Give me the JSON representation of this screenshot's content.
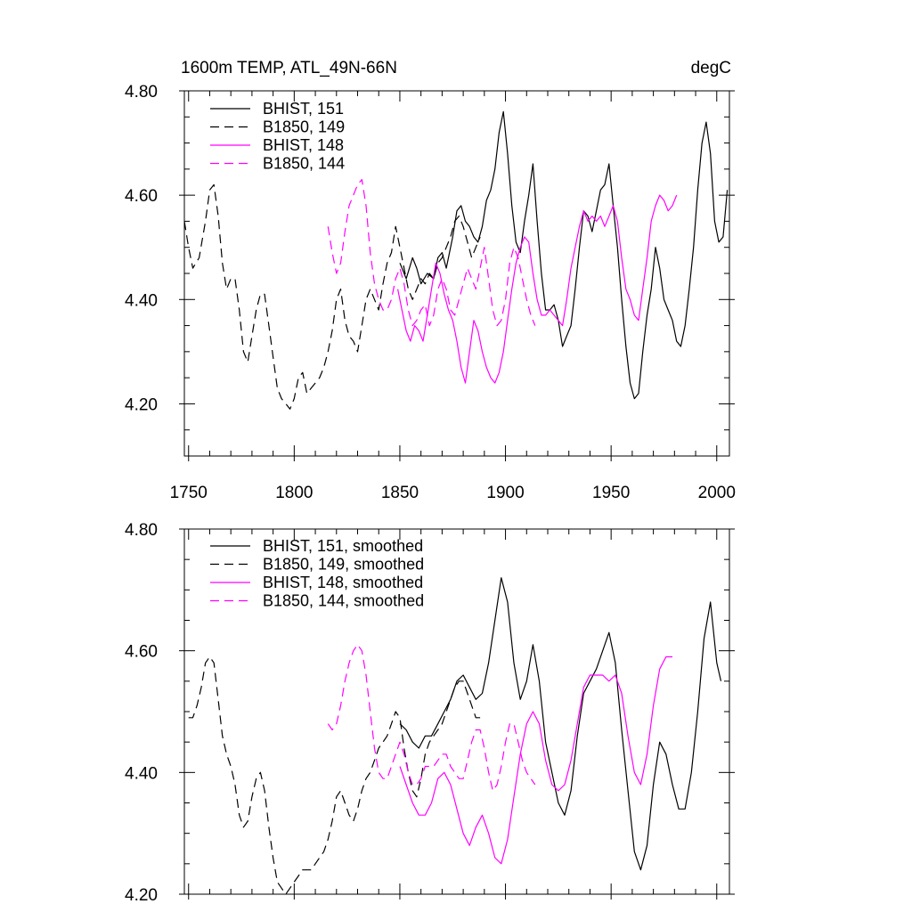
{
  "header": {
    "title": "1600m TEMP, ATL_49N-66N",
    "units": "degC"
  },
  "colors": {
    "black": "#000000",
    "magenta": "#ff00ff"
  },
  "chart_data": [
    {
      "type": "line",
      "panel": "top",
      "xlim": [
        1748,
        2006
      ],
      "ylim": [
        4.1,
        4.8
      ],
      "xticks": [
        1750,
        1800,
        1850,
        1900,
        1950,
        2000
      ],
      "yticks": [
        4.2,
        4.4,
        4.6,
        4.8
      ],
      "xtick_labels": [
        "1750",
        "1800",
        "1850",
        "1900",
        "1950",
        "2000"
      ],
      "ytick_labels": [
        "4.20",
        "4.40",
        "4.60",
        "4.80"
      ],
      "legend": "top-left",
      "series": [
        {
          "name": "BHIST, 151",
          "color": "#000000",
          "dash": "solid",
          "x": [
            1850,
            1853,
            1856,
            1858,
            1860,
            1863,
            1866,
            1868,
            1870,
            1872,
            1875,
            1877,
            1879,
            1881,
            1883,
            1885,
            1887,
            1889,
            1891,
            1893,
            1895,
            1897,
            1899,
            1901,
            1903,
            1905,
            1907,
            1909,
            1911,
            1913,
            1915,
            1917,
            1919,
            1921,
            1923,
            1925,
            1927,
            1929,
            1931,
            1933,
            1935,
            1937,
            1939,
            1941,
            1943,
            1945,
            1947,
            1949,
            1951,
            1953,
            1955,
            1957,
            1959,
            1961,
            1963,
            1965,
            1967,
            1969,
            1971,
            1973,
            1975,
            1977,
            1979,
            1981,
            1983,
            1985,
            1987,
            1989,
            1991,
            1993,
            1995,
            1997,
            1999,
            2001,
            2003,
            2005
          ],
          "y": [
            4.47,
            4.44,
            4.48,
            4.46,
            4.43,
            4.45,
            4.44,
            4.48,
            4.49,
            4.46,
            4.52,
            4.57,
            4.58,
            4.55,
            4.54,
            4.52,
            4.51,
            4.54,
            4.59,
            4.61,
            4.65,
            4.72,
            4.76,
            4.68,
            4.58,
            4.51,
            4.49,
            4.55,
            4.6,
            4.66,
            4.55,
            4.45,
            4.38,
            4.38,
            4.39,
            4.36,
            4.31,
            4.33,
            4.35,
            4.42,
            4.5,
            4.57,
            4.56,
            4.53,
            4.57,
            4.61,
            4.62,
            4.66,
            4.58,
            4.5,
            4.4,
            4.31,
            4.24,
            4.21,
            4.22,
            4.3,
            4.37,
            4.42,
            4.5,
            4.46,
            4.4,
            4.38,
            4.36,
            4.32,
            4.31,
            4.35,
            4.42,
            4.5,
            4.61,
            4.7,
            4.74,
            4.68,
            4.55,
            4.51,
            4.52,
            4.61
          ]
        },
        {
          "name": "B1850, 149",
          "color": "#000000",
          "dash": "long",
          "x": [
            1748,
            1750,
            1752,
            1755,
            1758,
            1760,
            1762,
            1764,
            1766,
            1768,
            1770,
            1772,
            1774,
            1776,
            1778,
            1780,
            1782,
            1784,
            1786,
            1788,
            1790,
            1792,
            1794,
            1796,
            1798,
            1800,
            1802,
            1804,
            1806,
            1808,
            1810,
            1812,
            1814,
            1816,
            1818,
            1820,
            1822,
            1824,
            1826,
            1828,
            1830,
            1832,
            1834,
            1836,
            1838,
            1840,
            1842,
            1844,
            1846,
            1848,
            1850,
            1852,
            1854,
            1856,
            1858,
            1860,
            1862,
            1864,
            1866,
            1868,
            1870,
            1872,
            1874,
            1876,
            1878,
            1880,
            1882,
            1884,
            1886,
            1888
          ],
          "y": [
            4.55,
            4.5,
            4.46,
            4.48,
            4.55,
            4.61,
            4.62,
            4.56,
            4.47,
            4.42,
            4.44,
            4.44,
            4.38,
            4.3,
            4.28,
            4.33,
            4.38,
            4.41,
            4.41,
            4.35,
            4.29,
            4.23,
            4.21,
            4.2,
            4.19,
            4.21,
            4.25,
            4.26,
            4.22,
            4.23,
            4.24,
            4.25,
            4.27,
            4.3,
            4.34,
            4.4,
            4.42,
            4.36,
            4.33,
            4.32,
            4.3,
            4.35,
            4.4,
            4.42,
            4.4,
            4.38,
            4.43,
            4.47,
            4.49,
            4.54,
            4.5,
            4.46,
            4.42,
            4.4,
            4.42,
            4.44,
            4.43,
            4.45,
            4.44,
            4.47,
            4.48,
            4.5,
            4.52,
            4.55,
            4.56,
            4.54,
            4.51,
            4.48,
            4.5,
            4.52
          ]
        },
        {
          "name": "BHIST, 148",
          "color": "#ff00ff",
          "dash": "solid",
          "x": [
            1849,
            1851,
            1853,
            1855,
            1857,
            1859,
            1861,
            1863,
            1865,
            1867,
            1869,
            1871,
            1873,
            1875,
            1877,
            1879,
            1881,
            1883,
            1885,
            1887,
            1889,
            1891,
            1893,
            1895,
            1897,
            1899,
            1901,
            1903,
            1905,
            1907,
            1909,
            1911,
            1913,
            1915,
            1917,
            1919,
            1921,
            1923,
            1925,
            1927,
            1929,
            1931,
            1933,
            1935,
            1937,
            1939,
            1941,
            1943,
            1945,
            1947,
            1949,
            1951,
            1953,
            1955,
            1957,
            1959,
            1961,
            1963,
            1965,
            1967,
            1969,
            1971,
            1973,
            1975,
            1977,
            1979,
            1981
          ],
          "y": [
            4.42,
            4.38,
            4.34,
            4.32,
            4.35,
            4.34,
            4.32,
            4.37,
            4.42,
            4.47,
            4.45,
            4.41,
            4.38,
            4.36,
            4.32,
            4.27,
            4.24,
            4.3,
            4.36,
            4.34,
            4.3,
            4.27,
            4.25,
            4.24,
            4.26,
            4.3,
            4.36,
            4.42,
            4.47,
            4.5,
            4.52,
            4.51,
            4.45,
            4.4,
            4.37,
            4.37,
            4.38,
            4.37,
            4.36,
            4.35,
            4.4,
            4.46,
            4.5,
            4.54,
            4.57,
            4.55,
            4.56,
            4.55,
            4.56,
            4.54,
            4.56,
            4.58,
            4.55,
            4.48,
            4.42,
            4.4,
            4.37,
            4.36,
            4.42,
            4.48,
            4.55,
            4.58,
            4.6,
            4.59,
            4.57,
            4.58,
            4.6
          ]
        },
        {
          "name": "B1850, 144",
          "color": "#ff00ff",
          "dash": "long",
          "x": [
            1816,
            1818,
            1820,
            1822,
            1824,
            1826,
            1828,
            1830,
            1832,
            1834,
            1836,
            1838,
            1840,
            1842,
            1844,
            1846,
            1848,
            1850,
            1852,
            1854,
            1856,
            1858,
            1860,
            1862,
            1864,
            1866,
            1868,
            1870,
            1872,
            1874,
            1876,
            1878,
            1880,
            1882,
            1884,
            1886,
            1888,
            1890,
            1892,
            1894,
            1896,
            1898,
            1900,
            1902,
            1904,
            1906,
            1908,
            1910,
            1912,
            1914
          ],
          "y": [
            4.54,
            4.49,
            4.45,
            4.47,
            4.53,
            4.58,
            4.6,
            4.62,
            4.63,
            4.58,
            4.49,
            4.43,
            4.4,
            4.38,
            4.38,
            4.4,
            4.44,
            4.46,
            4.43,
            4.38,
            4.35,
            4.36,
            4.38,
            4.39,
            4.35,
            4.37,
            4.42,
            4.44,
            4.42,
            4.38,
            4.37,
            4.4,
            4.43,
            4.46,
            4.44,
            4.42,
            4.46,
            4.5,
            4.44,
            4.38,
            4.35,
            4.36,
            4.4,
            4.47,
            4.5,
            4.48,
            4.44,
            4.4,
            4.37,
            4.35
          ]
        }
      ]
    },
    {
      "type": "line",
      "panel": "bottom",
      "xlim": [
        1748,
        2006
      ],
      "ylim": [
        4.2,
        4.8
      ],
      "xticks": [
        1750,
        1800,
        1850,
        1900,
        1950,
        2000
      ],
      "yticks": [
        4.2,
        4.4,
        4.6,
        4.8
      ],
      "ytick_labels": [
        "4.20",
        "4.40",
        "4.60",
        "4.80"
      ],
      "legend": "top-left",
      "series": [
        {
          "name": "BHIST, 151, smoothed",
          "color": "#000000",
          "dash": "solid",
          "x": [
            1850,
            1853,
            1856,
            1859,
            1862,
            1865,
            1868,
            1871,
            1874,
            1877,
            1880,
            1883,
            1886,
            1889,
            1892,
            1895,
            1898,
            1901,
            1904,
            1907,
            1910,
            1913,
            1916,
            1919,
            1922,
            1925,
            1928,
            1931,
            1934,
            1937,
            1940,
            1943,
            1946,
            1949,
            1952,
            1955,
            1958,
            1961,
            1964,
            1967,
            1970,
            1973,
            1976,
            1979,
            1982,
            1985,
            1988,
            1991,
            1994,
            1997,
            2000,
            2002
          ],
          "y": [
            4.48,
            4.47,
            4.45,
            4.44,
            4.46,
            4.46,
            4.48,
            4.5,
            4.52,
            4.55,
            4.56,
            4.54,
            4.52,
            4.53,
            4.58,
            4.65,
            4.72,
            4.68,
            4.58,
            4.52,
            4.55,
            4.61,
            4.55,
            4.45,
            4.4,
            4.35,
            4.33,
            4.37,
            4.46,
            4.53,
            4.55,
            4.57,
            4.6,
            4.63,
            4.58,
            4.47,
            4.37,
            4.27,
            4.24,
            4.28,
            4.38,
            4.45,
            4.43,
            4.38,
            4.34,
            4.34,
            4.4,
            4.5,
            4.62,
            4.68,
            4.58,
            4.55
          ]
        },
        {
          "name": "B1850, 149, smoothed",
          "color": "#000000",
          "dash": "long",
          "x": [
            1750,
            1752,
            1754,
            1756,
            1758,
            1760,
            1762,
            1764,
            1766,
            1768,
            1770,
            1772,
            1774,
            1776,
            1778,
            1780,
            1782,
            1784,
            1786,
            1788,
            1790,
            1792,
            1794,
            1796,
            1798,
            1800,
            1802,
            1804,
            1806,
            1808,
            1810,
            1812,
            1814,
            1816,
            1818,
            1820,
            1822,
            1824,
            1826,
            1828,
            1830,
            1832,
            1834,
            1836,
            1838,
            1840,
            1842,
            1844,
            1846,
            1848,
            1850,
            1852,
            1854,
            1856,
            1858,
            1860,
            1862,
            1864,
            1866,
            1868,
            1870,
            1872,
            1874,
            1876,
            1878,
            1880,
            1882,
            1884,
            1886,
            1888
          ],
          "y": [
            4.49,
            4.49,
            4.51,
            4.54,
            4.58,
            4.59,
            4.58,
            4.52,
            4.46,
            4.43,
            4.41,
            4.38,
            4.33,
            4.31,
            4.32,
            4.36,
            4.39,
            4.4,
            4.37,
            4.31,
            4.26,
            4.22,
            4.21,
            4.2,
            4.21,
            4.22,
            4.23,
            4.24,
            4.24,
            4.24,
            4.25,
            4.26,
            4.27,
            4.29,
            4.32,
            4.36,
            4.37,
            4.35,
            4.33,
            4.32,
            4.34,
            4.37,
            4.39,
            4.4,
            4.42,
            4.44,
            4.45,
            4.46,
            4.48,
            4.5,
            4.49,
            4.44,
            4.4,
            4.37,
            4.36,
            4.39,
            4.43,
            4.45,
            4.46,
            4.47,
            4.48,
            4.5,
            4.52,
            4.54,
            4.55,
            4.55,
            4.53,
            4.51,
            4.49,
            4.49
          ]
        },
        {
          "name": "BHIST, 148, smoothed",
          "color": "#ff00ff",
          "dash": "solid",
          "x": [
            1850,
            1853,
            1856,
            1859,
            1862,
            1865,
            1868,
            1871,
            1874,
            1877,
            1880,
            1883,
            1886,
            1889,
            1892,
            1895,
            1898,
            1901,
            1904,
            1907,
            1910,
            1913,
            1916,
            1919,
            1922,
            1925,
            1928,
            1931,
            1934,
            1937,
            1940,
            1943,
            1946,
            1949,
            1952,
            1955,
            1958,
            1961,
            1964,
            1967,
            1970,
            1973,
            1976,
            1979
          ],
          "y": [
            4.41,
            4.38,
            4.35,
            4.33,
            4.33,
            4.35,
            4.39,
            4.4,
            4.38,
            4.34,
            4.3,
            4.28,
            4.31,
            4.33,
            4.3,
            4.26,
            4.25,
            4.29,
            4.36,
            4.43,
            4.48,
            4.5,
            4.48,
            4.42,
            4.38,
            4.37,
            4.38,
            4.42,
            4.48,
            4.54,
            4.56,
            4.56,
            4.56,
            4.55,
            4.56,
            4.53,
            4.46,
            4.4,
            4.38,
            4.43,
            4.51,
            4.57,
            4.59,
            4.59
          ]
        },
        {
          "name": "B1850, 144, smoothed",
          "color": "#ff00ff",
          "dash": "long",
          "x": [
            1816,
            1818,
            1820,
            1822,
            1824,
            1826,
            1828,
            1830,
            1832,
            1834,
            1836,
            1838,
            1840,
            1842,
            1844,
            1846,
            1848,
            1850,
            1852,
            1854,
            1856,
            1858,
            1860,
            1862,
            1864,
            1866,
            1868,
            1870,
            1872,
            1874,
            1876,
            1878,
            1880,
            1882,
            1884,
            1886,
            1888,
            1890,
            1892,
            1894,
            1896,
            1898,
            1900,
            1902,
            1904,
            1906,
            1908,
            1910,
            1912,
            1914
          ],
          "y": [
            4.48,
            4.47,
            4.48,
            4.51,
            4.55,
            4.58,
            4.6,
            4.61,
            4.6,
            4.56,
            4.5,
            4.44,
            4.4,
            4.39,
            4.39,
            4.41,
            4.43,
            4.45,
            4.43,
            4.4,
            4.38,
            4.38,
            4.39,
            4.41,
            4.41,
            4.41,
            4.42,
            4.43,
            4.43,
            4.41,
            4.4,
            4.39,
            4.39,
            4.42,
            4.45,
            4.47,
            4.47,
            4.44,
            4.4,
            4.37,
            4.38,
            4.41,
            4.45,
            4.48,
            4.48,
            4.45,
            4.42,
            4.4,
            4.39,
            4.38
          ]
        }
      ]
    }
  ]
}
